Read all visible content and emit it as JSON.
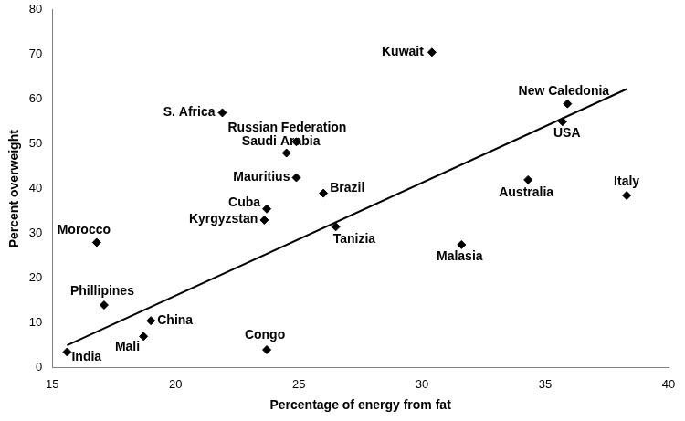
{
  "chart_data": {
    "type": "scatter",
    "x_label": "Percentage of energy from fat",
    "y_label": "Percent overweight",
    "point_labels": [
      "India",
      "Morocco",
      "Phillipines",
      "China",
      "Mali",
      "S. Africa",
      "Kyrgyzstan",
      "Cuba",
      "Congo",
      "Saudi Arabia",
      "Russian Federation",
      "Mauritius",
      "Brazil",
      "Tanizia",
      "Kuwait",
      "Malasia",
      "Australia",
      "USA",
      "New Caledonia",
      "Italy"
    ],
    "x": [
      15.6,
      16.8,
      17.1,
      19.0,
      18.7,
      21.9,
      23.6,
      23.7,
      23.7,
      24.5,
      24.9,
      24.9,
      26.0,
      26.5,
      30.4,
      31.6,
      34.3,
      35.7,
      35.9,
      38.3
    ],
    "values": [
      3.5,
      28,
      14,
      10.5,
      7,
      57,
      33,
      35.5,
      4,
      48,
      50.5,
      42.5,
      39,
      31.5,
      70.5,
      27.5,
      42,
      55,
      59,
      38.5
    ],
    "color": "#000000",
    "marker": "diamond",
    "trendline": {
      "x": [
        15.6,
        38.3
      ],
      "values": [
        5,
        62.3
      ],
      "color": "#000000",
      "line_style": "solid"
    },
    "xlim": [
      15,
      40
    ],
    "xticks": [
      15,
      20,
      25,
      30,
      35,
      40
    ],
    "ylim": [
      0,
      80
    ],
    "yticks": [
      0,
      10,
      20,
      30,
      40,
      50,
      60,
      70,
      80
    ],
    "grid": false
  }
}
